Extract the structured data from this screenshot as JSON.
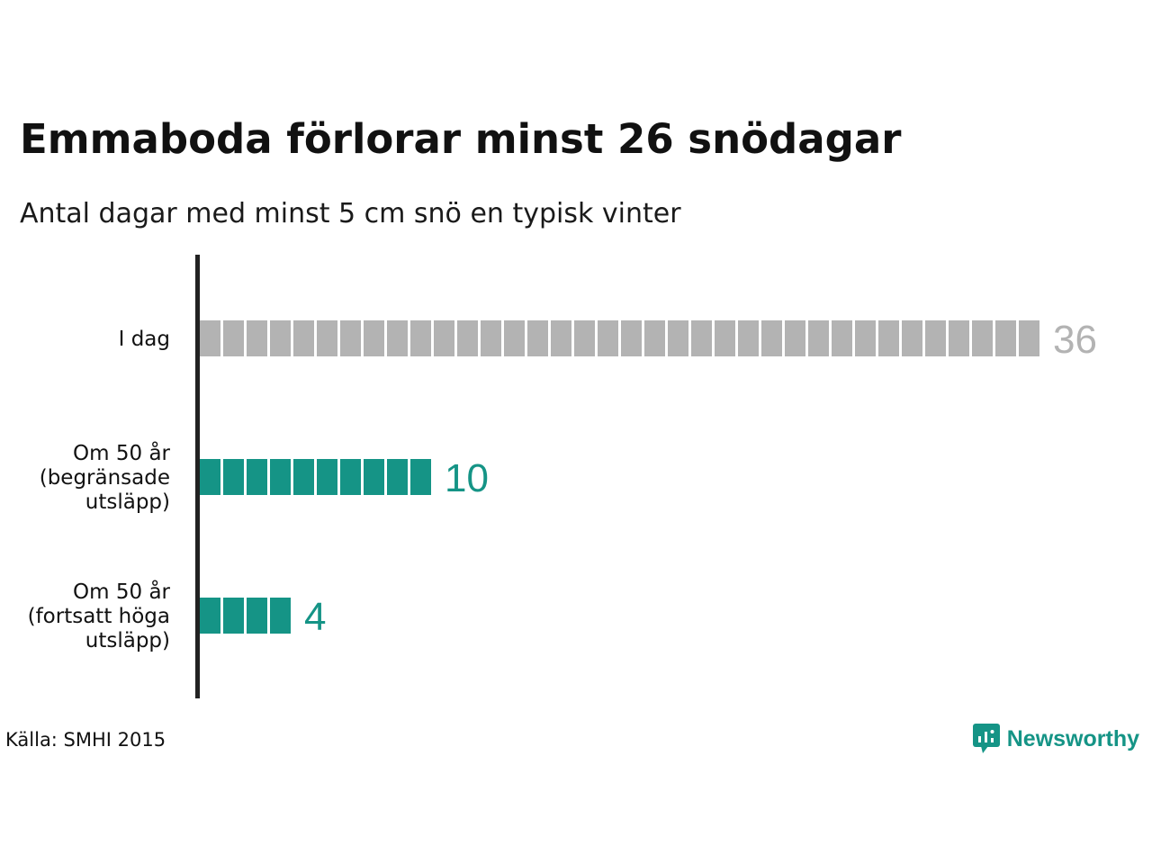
{
  "title": "Emmaboda förlorar minst 26 snödagar",
  "subtitle": "Antal dagar med minst 5 cm snö en typisk vinter",
  "source": "Källa: SMHI 2015",
  "brand": {
    "name": "Newsworthy",
    "icon": "newsworthy-logo-icon",
    "color": "#159486"
  },
  "colors": {
    "today": "#b3b3b3",
    "future": "#159486",
    "axis": "#222222"
  },
  "chart_data": {
    "type": "bar",
    "orientation": "horizontal",
    "style": "unit-blocks",
    "title": "Emmaboda förlorar minst 26 snödagar",
    "subtitle": "Antal dagar med minst 5 cm snö en typisk vinter",
    "xlabel": "",
    "ylabel": "",
    "grid": false,
    "categories": [
      [
        "I dag"
      ],
      [
        "Om 50 år",
        "(begränsade",
        "utsläpp)"
      ],
      [
        "Om 50 år",
        "(fortsatt höga",
        "utsläpp)"
      ]
    ],
    "values": [
      36,
      10,
      4
    ],
    "value_labels": [
      "36",
      "10",
      "4"
    ],
    "bar_colors": [
      "#b3b3b3",
      "#159486",
      "#159486"
    ]
  }
}
